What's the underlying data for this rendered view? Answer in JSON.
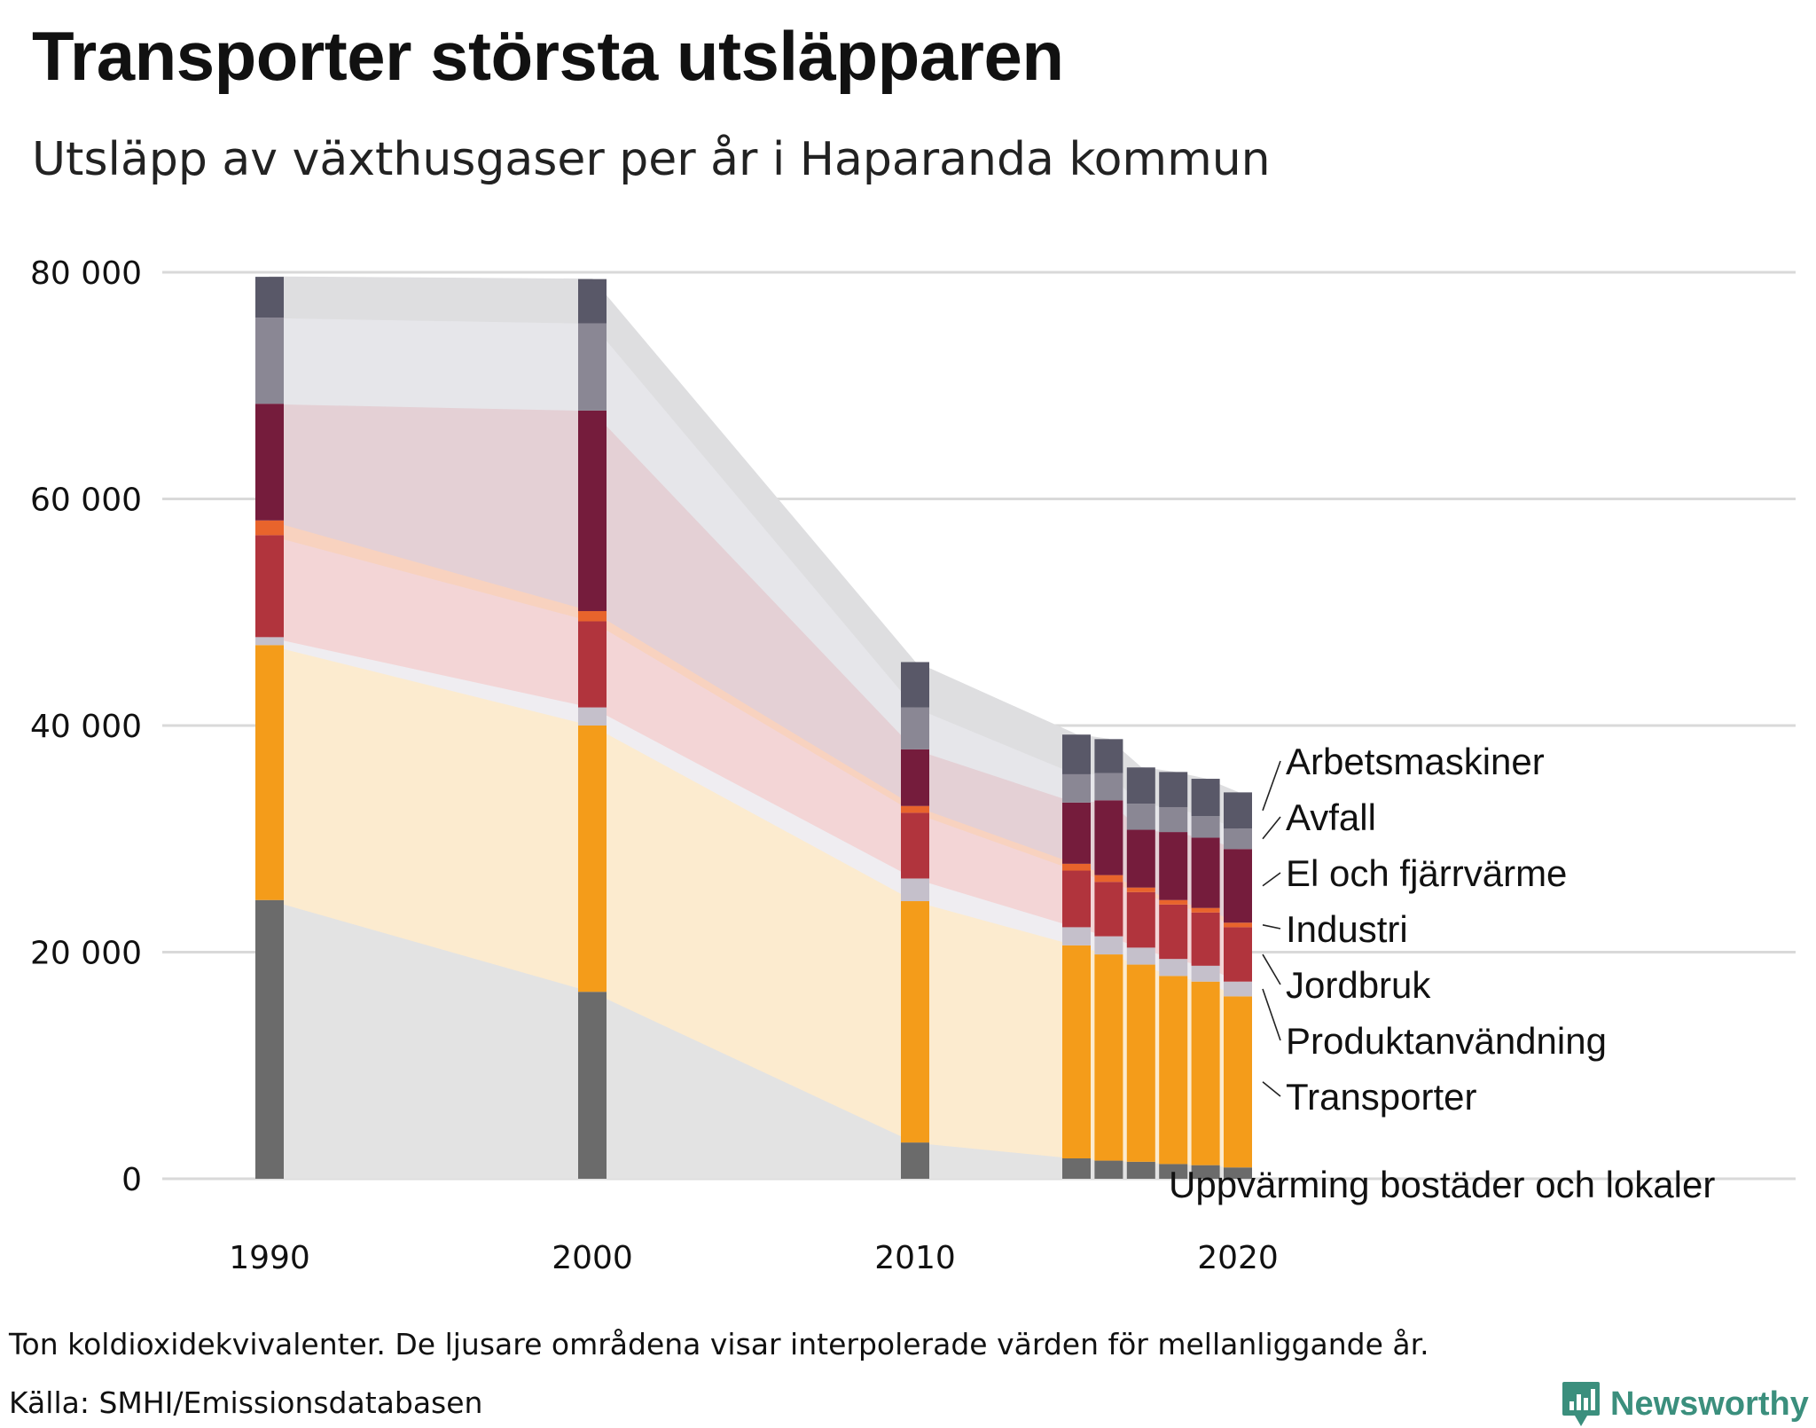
{
  "title": "Transporter största utsläpparen",
  "subtitle": "Utsläpp av växthusgaser per år i Haparanda kommun",
  "footer": {
    "note": "Ton koldioxidekvivalenter. De ljusare områdena visar interpolerade värden för mellanliggande år.",
    "source": "Källa: SMHI/Emissionsdatabasen",
    "brand": "Newsworthy"
  },
  "chart_data": {
    "type": "bar",
    "stacked": true,
    "title": "Transporter största utsläpparen",
    "ylabel": "Ton koldioxidekvivalenter",
    "ylim": [
      0,
      80000
    ],
    "yticks": [
      0,
      20000,
      40000,
      60000,
      80000
    ],
    "ytick_labels": [
      "0",
      "20 000",
      "40 000",
      "60 000",
      "80 000"
    ],
    "xticks": [
      1990,
      2000,
      2010,
      2020
    ],
    "xtick_labels": [
      "1990",
      "2000",
      "2010",
      "2020"
    ],
    "x": [
      1990,
      2000,
      2010,
      2015,
      2016,
      2017,
      2018,
      2019,
      2020
    ],
    "series": [
      {
        "name": "Uppvärming bostäder och lokaler",
        "color": "#6b6b6b",
        "area": "#e3e3e3",
        "values": [
          24600,
          16500,
          3200,
          1800,
          1600,
          1500,
          1300,
          1200,
          1000
        ]
      },
      {
        "name": "Transporter",
        "color": "#f49c1a",
        "area": "#fcebcf",
        "values": [
          22500,
          23500,
          21300,
          18800,
          18200,
          17400,
          16600,
          16200,
          15100
        ]
      },
      {
        "name": "Produktanvändning",
        "color": "#c5c0cb",
        "area": "#efedf1",
        "values": [
          700,
          1600,
          2000,
          1600,
          1600,
          1500,
          1500,
          1400,
          1300
        ]
      },
      {
        "name": "Jordbruk",
        "color": "#b1343d",
        "area": "#f3d5d6",
        "values": [
          9000,
          7600,
          5800,
          5000,
          4800,
          4900,
          4800,
          4700,
          4800
        ]
      },
      {
        "name": "Industri",
        "color": "#e8642c",
        "area": "#f8d2bf",
        "values": [
          1300,
          900,
          600,
          600,
          600,
          400,
          400,
          400,
          400
        ]
      },
      {
        "name": "El och fjärrvärme",
        "color": "#751c3c",
        "area": "#e4d0d5",
        "values": [
          10300,
          17700,
          5000,
          5400,
          6600,
          5100,
          6000,
          6200,
          6500
        ]
      },
      {
        "name": "Avfall",
        "color": "#8a8794",
        "area": "#e6e6ea",
        "values": [
          7600,
          7700,
          3700,
          2500,
          2400,
          2300,
          2200,
          1900,
          1800
        ]
      },
      {
        "name": "Arbetsmaskiner",
        "color": "#595868",
        "area": "#dedee0",
        "values": [
          3600,
          3900,
          4000,
          3500,
          3000,
          3200,
          3100,
          3300,
          3200
        ]
      }
    ],
    "legend": "right, direct labels"
  }
}
